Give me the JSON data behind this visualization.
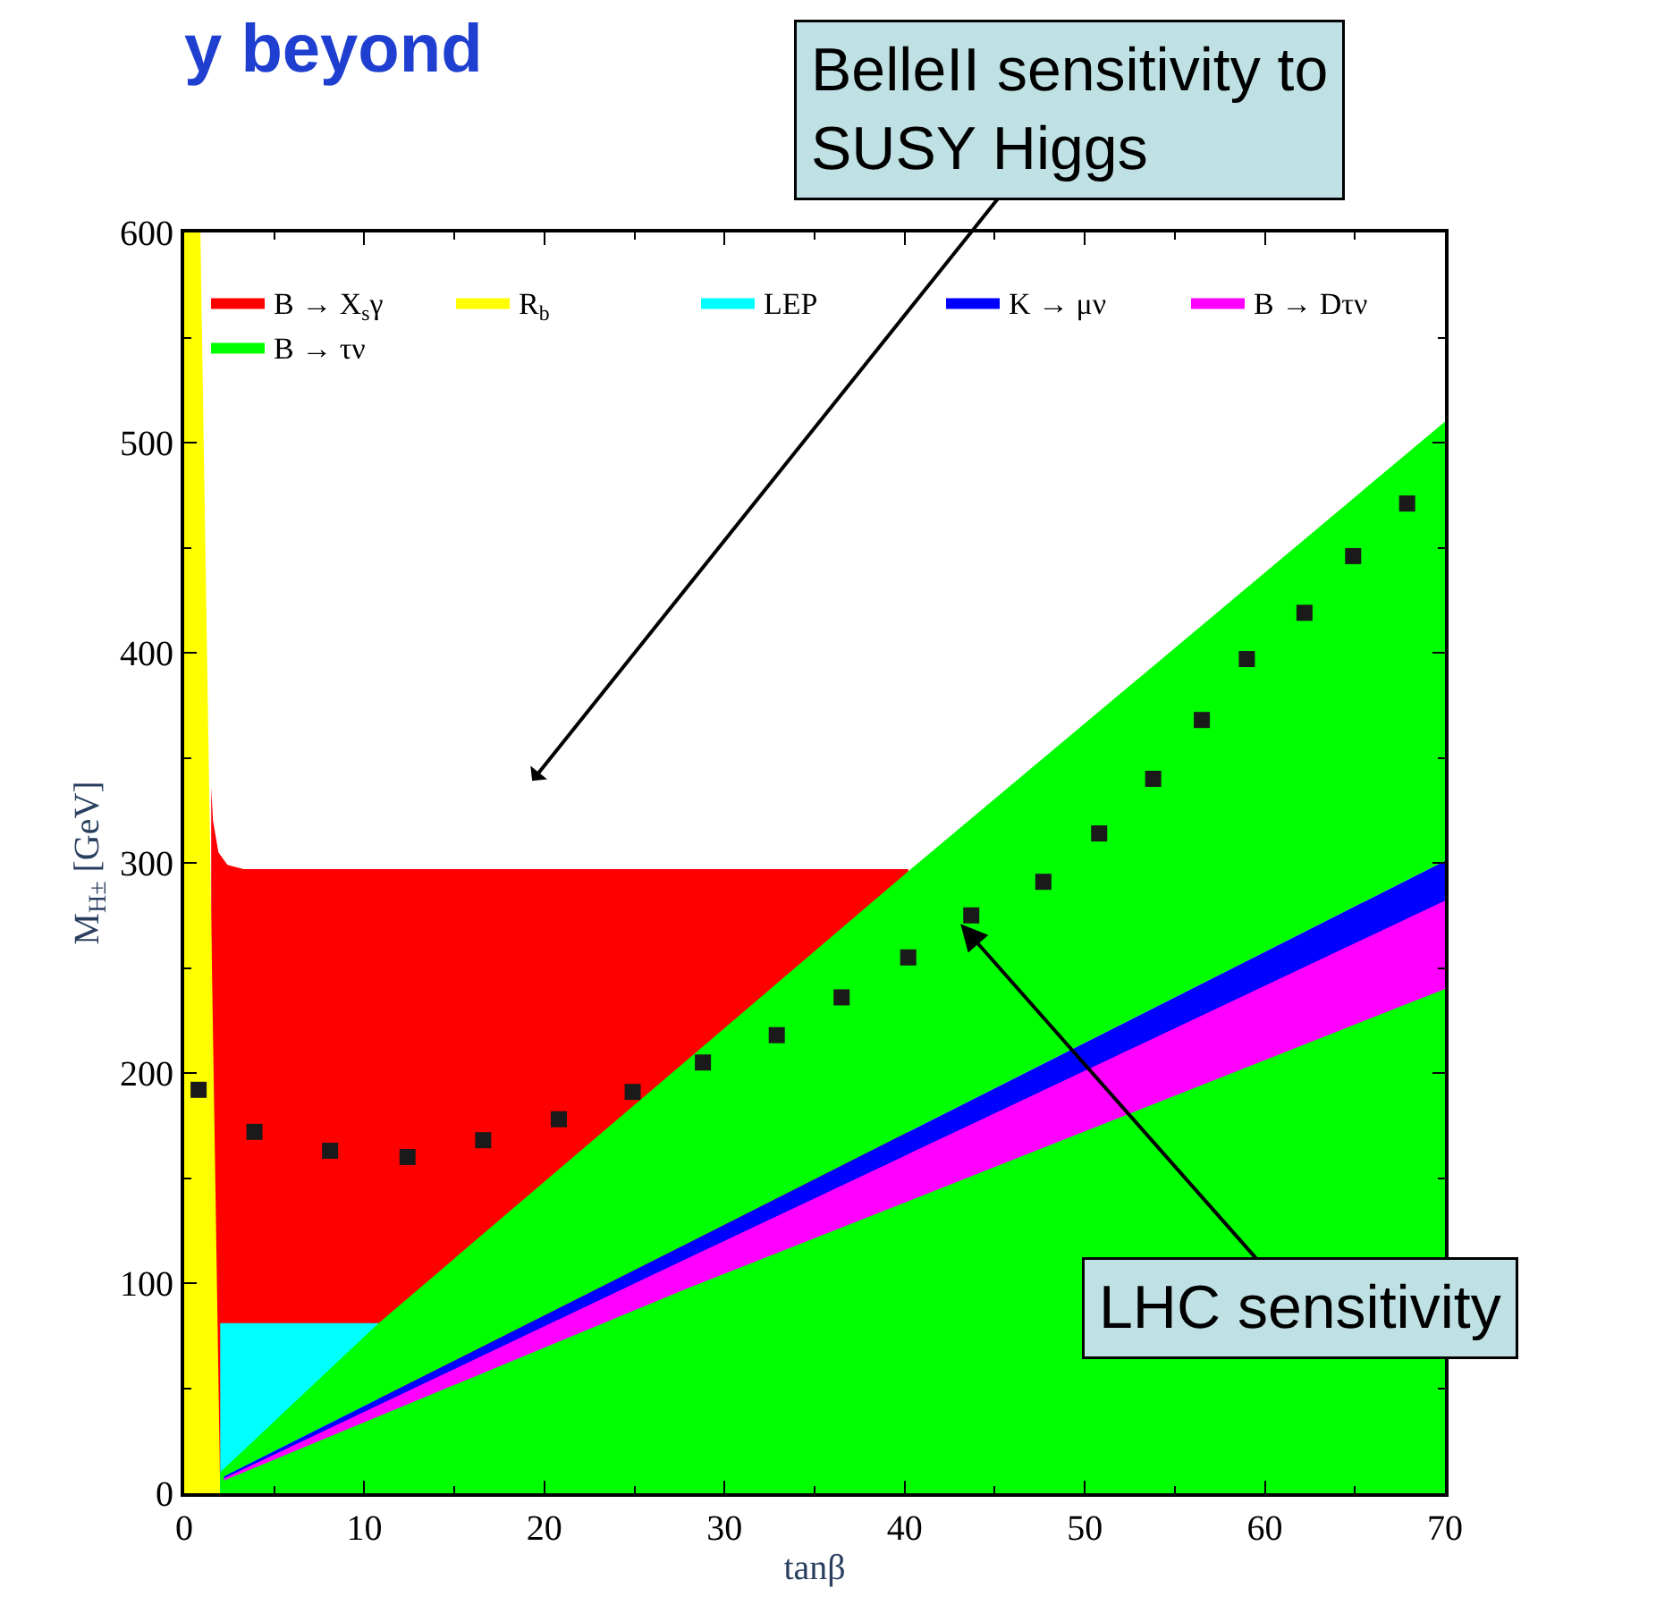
{
  "chart_data": {
    "type": "area",
    "title": "y beyond",
    "xlabel": "tanβ",
    "ylabel": "M$_{H±}$ [GeV]",
    "xlim": [
      0,
      70
    ],
    "ylim": [
      0,
      600
    ],
    "xticks": [
      0,
      10,
      20,
      30,
      40,
      50,
      60,
      70
    ],
    "yticks": [
      0,
      100,
      200,
      300,
      400,
      500,
      600
    ],
    "legend": "top",
    "series": [
      {
        "name": "B → X$_{s}$γ",
        "color": "#ff0000",
        "x": [
          1.5,
          1.6,
          1.9,
          2.4,
          3.3,
          40.2
        ],
        "values": [
          336,
          320,
          305,
          299,
          297,
          297
        ]
      },
      {
        "name": "R$_{b}$",
        "color": "#ffff00",
        "x": [
          0,
          0.9,
          2.0
        ],
        "values": [
          600,
          600,
          0
        ]
      },
      {
        "name": "LEP",
        "color": "#00ffff",
        "x": [
          2.0,
          10.8
        ],
        "values": [
          81,
          81
        ]
      },
      {
        "name": "K → μν",
        "color": "#0000ff",
        "x": [
          2.2,
          27.5,
          70
        ],
        "values": [
          8,
          117,
          301
        ]
      },
      {
        "name": "B → Dτν",
        "color": "#ff00ff",
        "x": [
          2.2,
          27.5,
          70
        ],
        "values": [
          7,
          110,
          282
        ]
      },
      {
        "name": "B → τν",
        "color": "#00ff00",
        "x": [
          2.0,
          10.8,
          40.2,
          70,
          70,
          27.5,
          2.2,
          2.2,
          27.5,
          70,
          70,
          2.0
        ],
        "values": [
          10,
          81,
          296,
          510,
          301,
          117,
          8,
          6,
          96,
          240,
          0,
          0
        ]
      },
      {
        "type": "scatter",
        "marker": "square",
        "color": "#1a1a1a",
        "x": [
          0.8,
          3.9,
          8.1,
          12.4,
          16.6,
          20.8,
          24.9,
          28.8,
          32.9,
          36.5,
          40.2,
          43.7,
          47.7,
          50.8,
          53.8,
          56.5,
          59.0,
          62.2,
          64.9,
          67.9
        ],
        "values": [
          192,
          172,
          163,
          160,
          168,
          178,
          191,
          205,
          218,
          236,
          255,
          275,
          291,
          314,
          340,
          368,
          397,
          419,
          446,
          471
        ]
      }
    ],
    "annotations": [
      "BelleII sensitivity to\nSUSY Higgs",
      {
        "text": "LHC sensitivity",
        "x": 43.1,
        "y": 271
      }
    ]
  }
}
